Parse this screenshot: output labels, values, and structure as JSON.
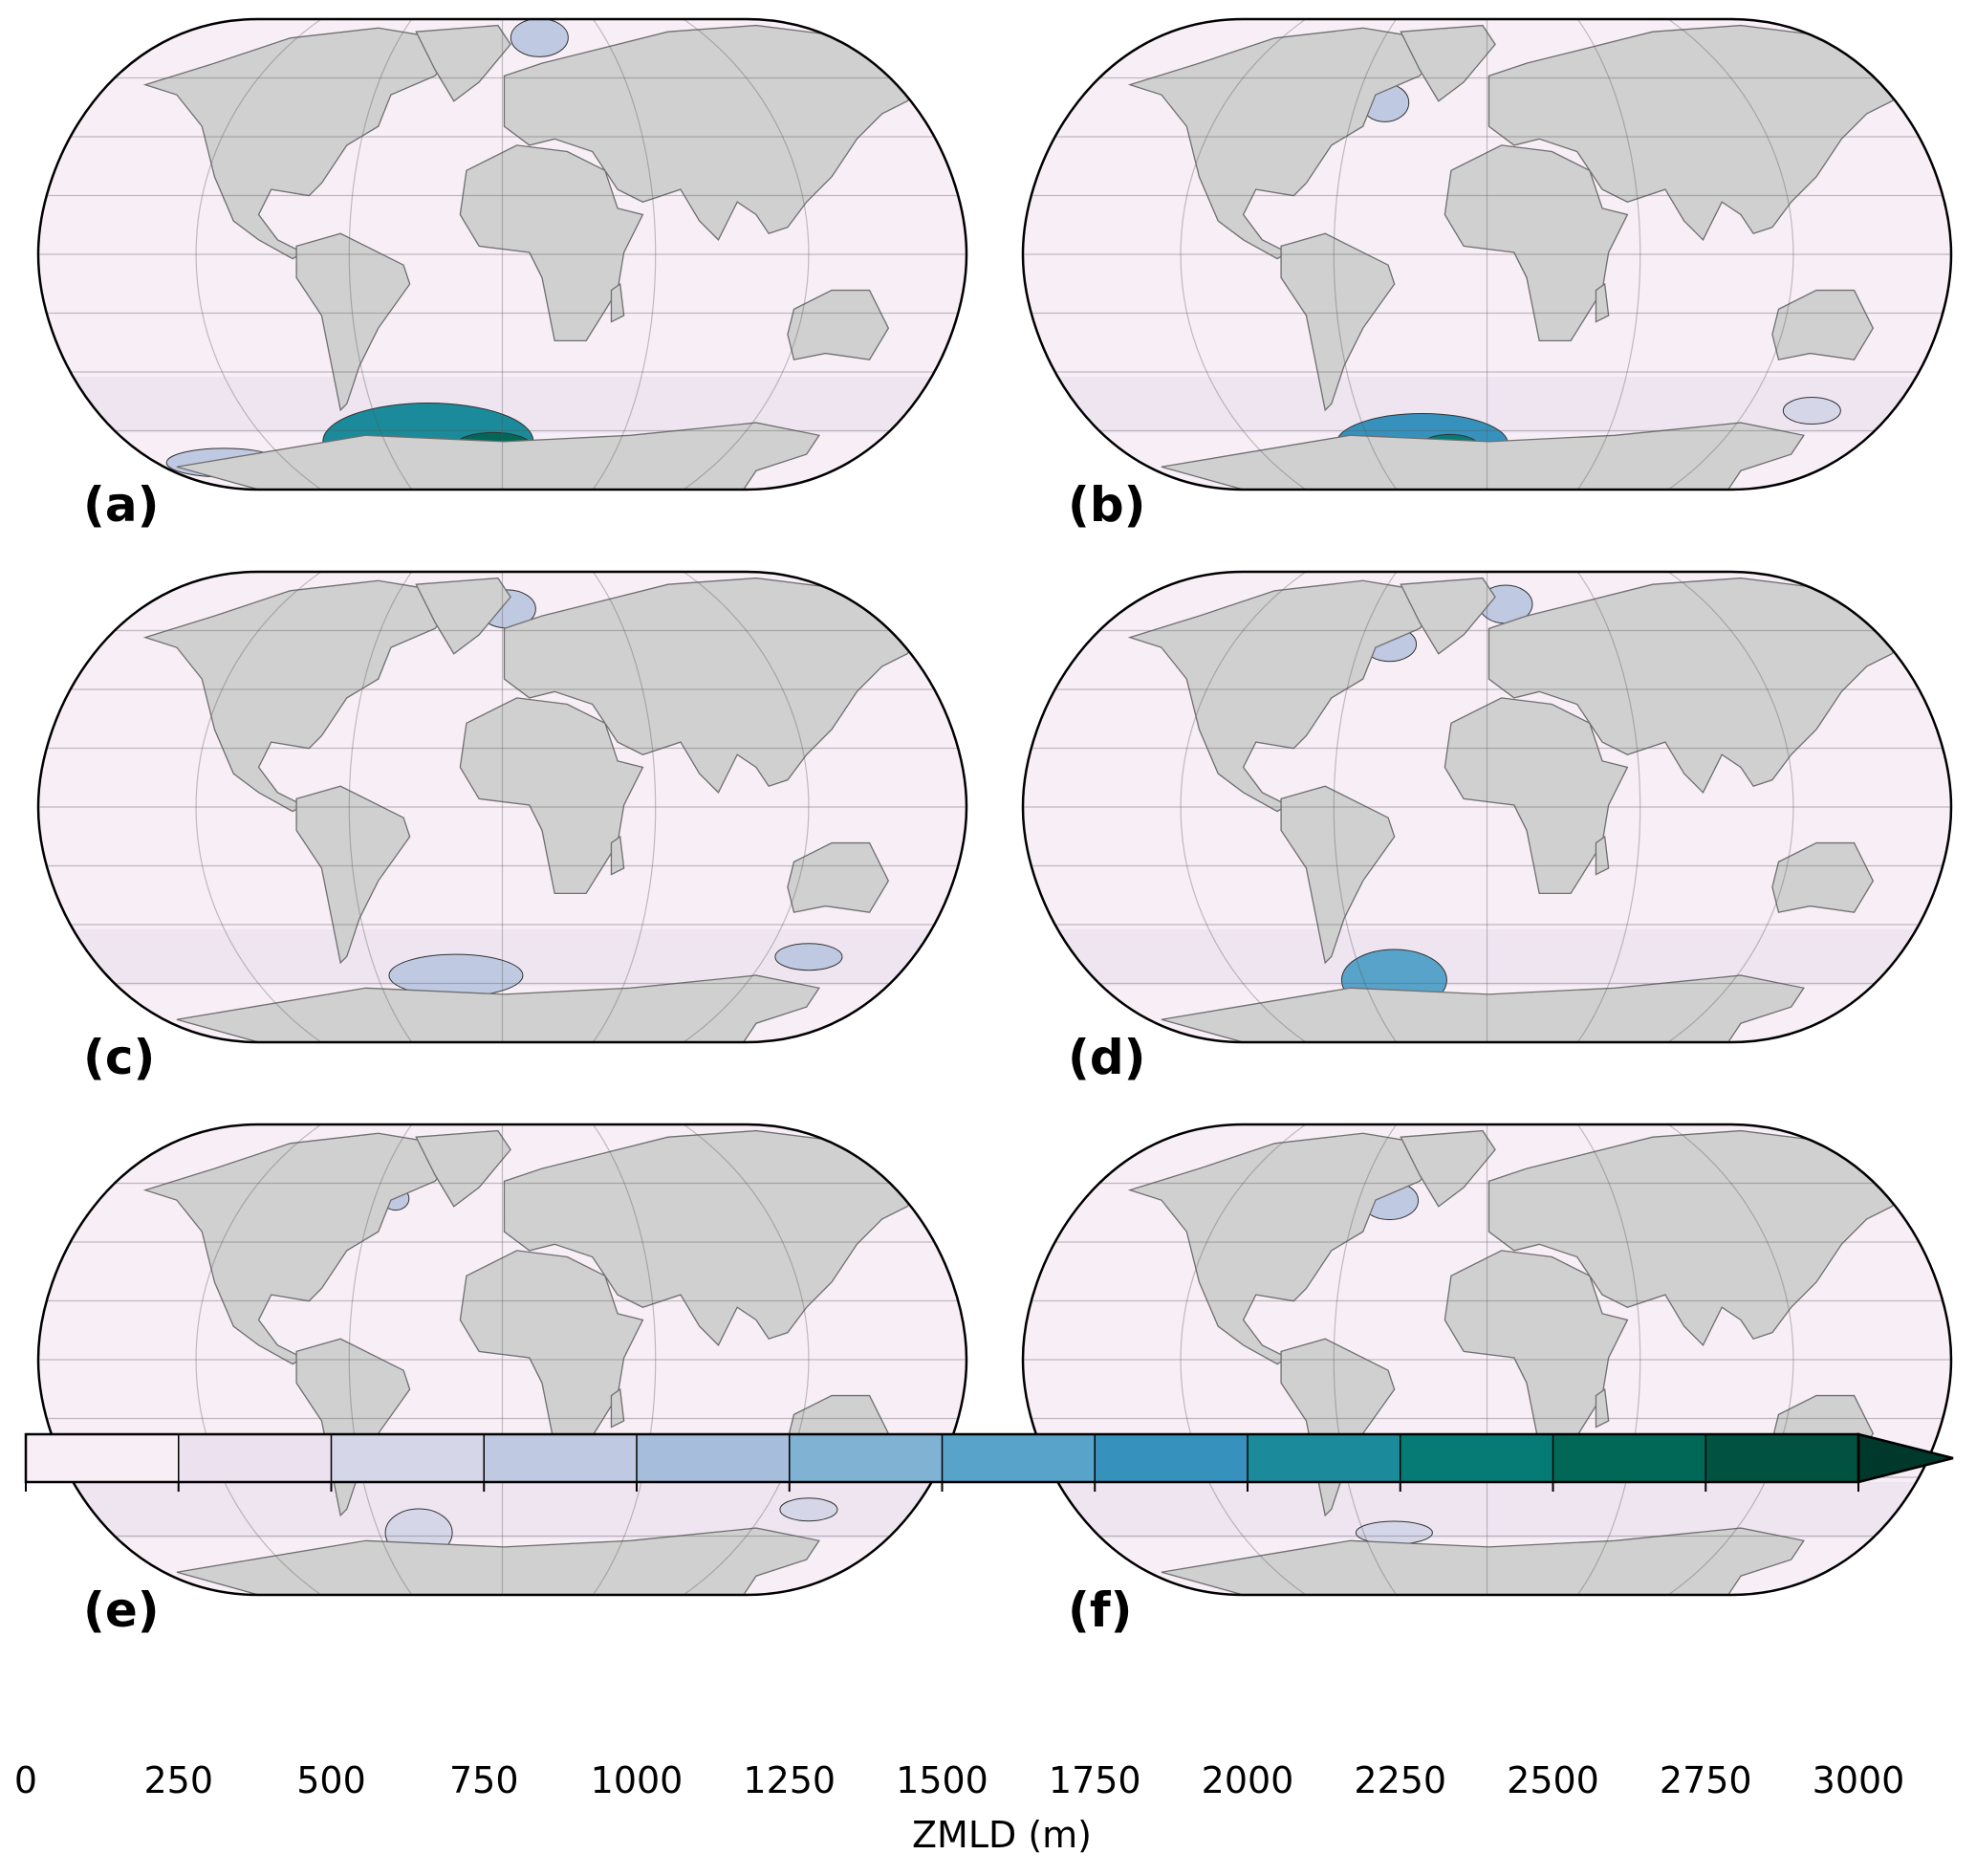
{
  "panels": [
    {
      "label": "(a)"
    },
    {
      "label": "(b)"
    },
    {
      "label": "(c)"
    },
    {
      "label": "(d)"
    },
    {
      "label": "(e)"
    },
    {
      "label": "(f)"
    }
  ],
  "colorbar": {
    "label": "ZMLD (m)",
    "ticks": [
      0,
      250,
      500,
      750,
      1000,
      1250,
      1500,
      1750,
      2000,
      2250,
      2500,
      2750,
      3000
    ],
    "colors": [
      "#f8eef6",
      "#ebe1ef",
      "#d6d6e9",
      "#bfc9e2",
      "#a6bddb",
      "#80b2d4",
      "#58a3c9",
      "#3692bd",
      "#1b8a9a",
      "#067b76",
      "#016857",
      "#015240"
    ],
    "extend_color": "#00392b"
  }
}
